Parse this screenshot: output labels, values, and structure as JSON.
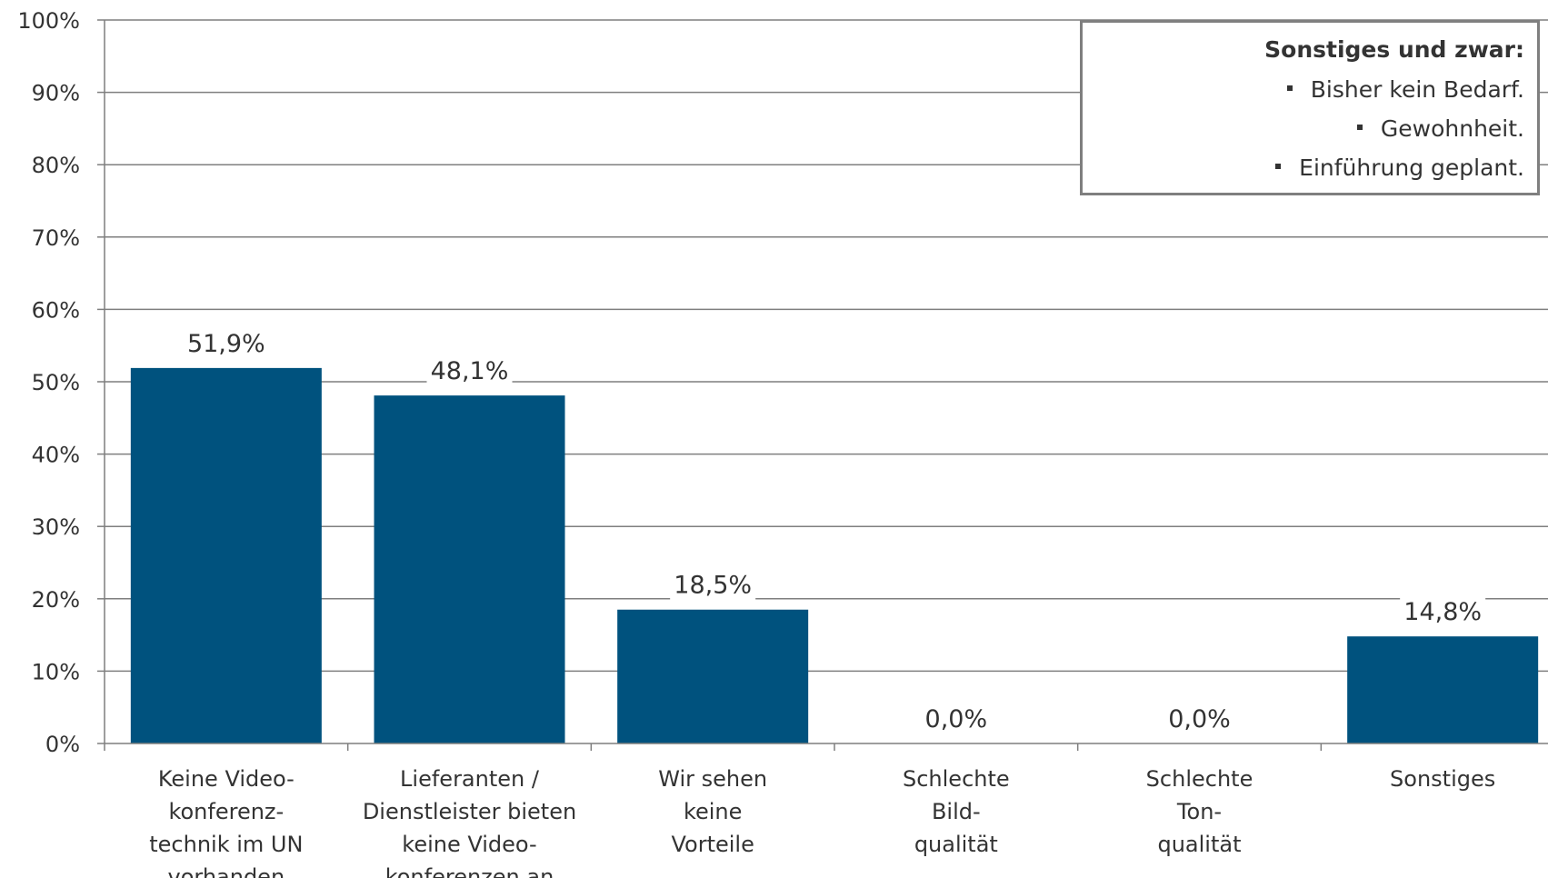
{
  "chart_data": {
    "type": "bar",
    "categories": [
      [
        "Keine Video-",
        "konferenz-",
        "technik im UN",
        "vorhanden"
      ],
      [
        "Lieferanten /",
        "Dienstleister bieten",
        "keine Video-",
        "konferenzen an"
      ],
      [
        "Wir sehen",
        "keine",
        "Vorteile"
      ],
      [
        "Schlechte",
        "Bild-",
        "qualität"
      ],
      [
        "Schlechte",
        "Ton-",
        "qualität"
      ],
      [
        "Sonstiges"
      ]
    ],
    "values": [
      51.9,
      48.1,
      18.5,
      0.0,
      0.0,
      14.8
    ],
    "data_labels": [
      "51,9%",
      "48,1%",
      "18,5%",
      "0,0%",
      "0,0%",
      "14,8%"
    ],
    "ylim": [
      0,
      100
    ],
    "yticks": [
      0,
      10,
      20,
      30,
      40,
      50,
      60,
      70,
      80,
      90,
      100
    ],
    "ytick_labels": [
      "0%",
      "10%",
      "20%",
      "30%",
      "40%",
      "50%",
      "60%",
      "70%",
      "80%",
      "90%",
      "100%"
    ],
    "grid": true,
    "bar_color": "#00527e",
    "grid_color": "#7f7f7f",
    "title": "",
    "xlabel": "",
    "ylabel": ""
  },
  "note": {
    "title": "Sonstiges und zwar:",
    "items": [
      "Bisher kein Bedarf.",
      "Gewohnheit.",
      "Einführung geplant."
    ]
  }
}
